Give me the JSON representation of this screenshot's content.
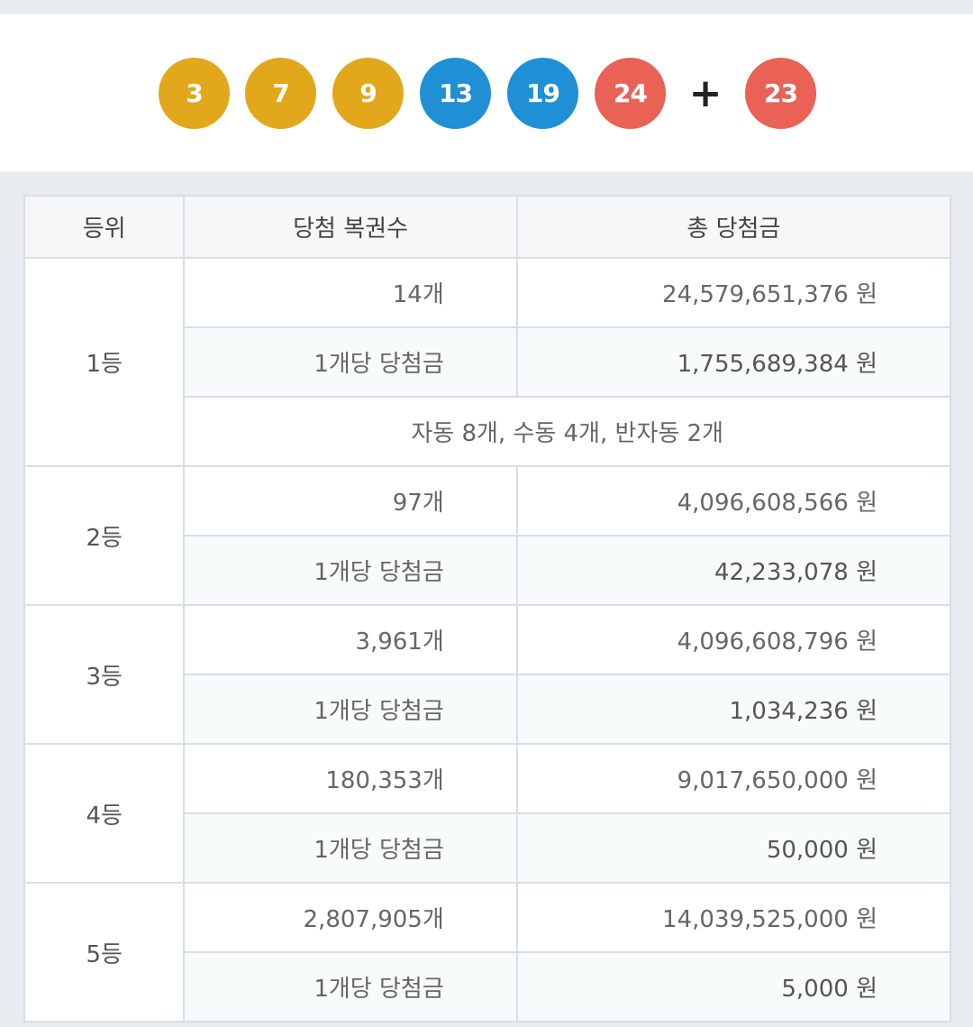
{
  "balls": [
    {
      "number": "3",
      "color": "#e3a71b"
    },
    {
      "number": "7",
      "color": "#e3a71b"
    },
    {
      "number": "9",
      "color": "#e3a71b"
    },
    {
      "number": "13",
      "color": "#1f8fd6"
    },
    {
      "number": "19",
      "color": "#1f8fd6"
    },
    {
      "number": "24",
      "color": "#ea6155"
    }
  ],
  "plus_symbol": "+",
  "bonus_ball": {
    "number": "23",
    "color": "#ea6155"
  },
  "table": {
    "headers": {
      "rank": "등위",
      "winners": "당첨 복권수",
      "total_prize": "총 당첨금"
    },
    "per_ticket_label": "1개당 당첨금",
    "rows": [
      {
        "rank": "1등",
        "winners": "14개",
        "total": "24,579,651,376 원",
        "per_ticket": "1,755,689,384 원",
        "note": "자동 8개, 수동 4개, 반자동 2개"
      },
      {
        "rank": "2등",
        "winners": "97개",
        "total": "4,096,608,566 원",
        "per_ticket": "42,233,078 원"
      },
      {
        "rank": "3등",
        "winners": "3,961개",
        "total": "4,096,608,796 원",
        "per_ticket": "1,034,236 원"
      },
      {
        "rank": "4등",
        "winners": "180,353개",
        "total": "9,017,650,000 원",
        "per_ticket": "50,000 원"
      },
      {
        "rank": "5등",
        "winners": "2,807,905개",
        "total": "14,039,525,000 원",
        "per_ticket": "5,000 원"
      }
    ]
  }
}
